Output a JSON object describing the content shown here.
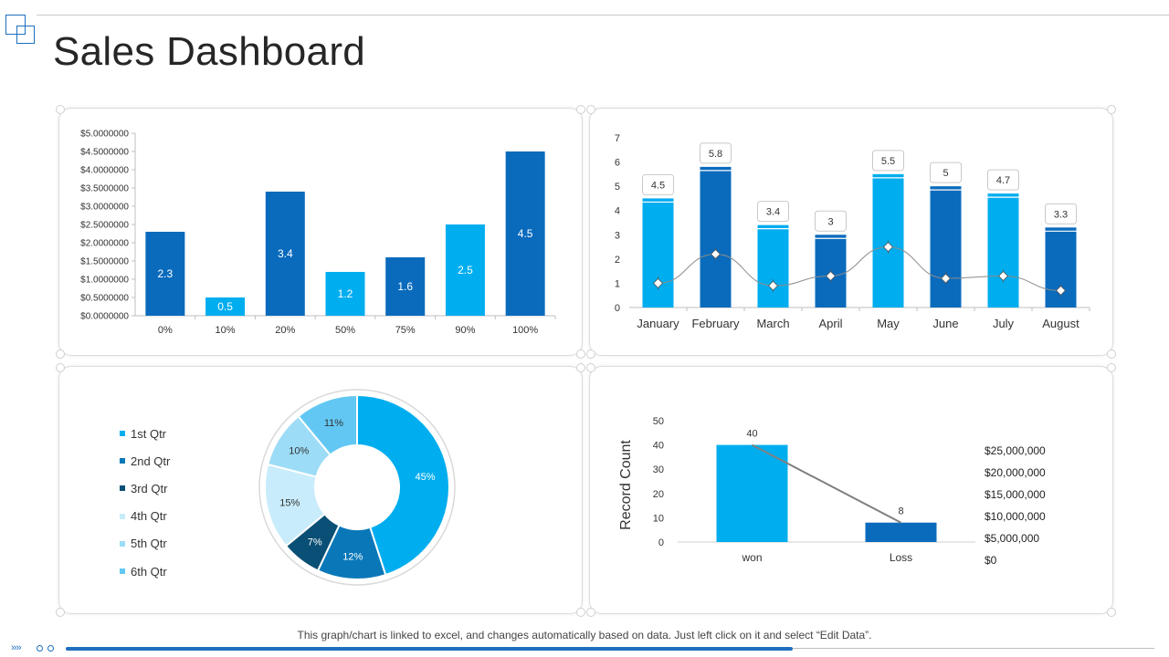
{
  "page": {
    "title": "Sales Dashboard"
  },
  "footer": {
    "note": "This graph/chart is linked to excel, and changes automatically based on data. Just left click on it and select “Edit Data”."
  },
  "colors": {
    "dark_blue": "#0a6bbd",
    "light_blue": "#00adef",
    "line_gray": "#8c8c8c"
  },
  "chart_data": [
    {
      "id": "chart1",
      "type": "bar",
      "categories": [
        "0%",
        "10%",
        "20%",
        "50%",
        "75%",
        "90%",
        "100%"
      ],
      "values": [
        2.3,
        0.5,
        3.4,
        1.2,
        1.6,
        2.5,
        4.5
      ],
      "data_labels": [
        "2.3",
        "0.5",
        "3.4",
        "1.2",
        "1.6",
        "2.5",
        "4.5"
      ],
      "bar_colors": [
        "#0a6bbd",
        "#00adef",
        "#0a6bbd",
        "#00adef",
        "#0a6bbd",
        "#00adef",
        "#0a6bbd"
      ],
      "ylim": [
        0,
        5
      ],
      "yticks": [
        0,
        0.5,
        1,
        1.5,
        2,
        2.5,
        3,
        3.5,
        4,
        4.5,
        5
      ],
      "ytick_labels": [
        "$0.0000000",
        "$0.5000000",
        "$1.0000000",
        "$1.5000000",
        "$2.0000000",
        "$2.5000000",
        "$3.0000000",
        "$3.5000000",
        "$4.0000000",
        "$4.5000000",
        "$5.0000000"
      ]
    },
    {
      "id": "chart2",
      "type": "bar",
      "categories": [
        "January",
        "February",
        "March",
        "April",
        "May",
        "June",
        "July",
        "August"
      ],
      "series": [
        {
          "name": "bars",
          "values": [
            4.5,
            5.8,
            3.4,
            3,
            5.5,
            5,
            4.7,
            3.3
          ]
        },
        {
          "name": "line",
          "type": "line",
          "values": [
            1.0,
            2.2,
            0.9,
            1.3,
            2.5,
            1.2,
            1.3,
            0.7
          ]
        }
      ],
      "data_labels": [
        "4.5",
        "5.8",
        "3.4",
        "3",
        "5.5",
        "5",
        "4.7",
        "3.3"
      ],
      "bar_colors": [
        "#00adef",
        "#0a6bbd",
        "#00adef",
        "#0a6bbd",
        "#00adef",
        "#0a6bbd",
        "#00adef",
        "#0a6bbd"
      ],
      "ylim": [
        0,
        7
      ],
      "yticks": [
        0,
        1,
        2,
        3,
        4,
        5,
        6,
        7
      ],
      "ytick_labels": [
        "0",
        "1",
        "2",
        "3",
        "4",
        "5",
        "6",
        "7"
      ]
    },
    {
      "id": "chart3",
      "type": "pie",
      "labels": [
        "1st Qtr",
        "2nd Qtr",
        "3rd Qtr",
        "4th Qtr",
        "5th Qtr",
        "6th Qtr"
      ],
      "values": [
        45,
        12,
        7,
        15,
        10,
        11
      ],
      "value_labels": [
        "45%",
        "12%",
        "7%",
        "15%",
        "10%",
        "11%"
      ],
      "colors": [
        "#00adef",
        "#0a78b8",
        "#0a4f75",
        "#c8ecfb",
        "#9cdcf7",
        "#62c8f3"
      ],
      "legend_position": "left"
    },
    {
      "id": "chart4",
      "type": "bar",
      "categories": [
        "won",
        "Loss"
      ],
      "values": [
        40,
        8
      ],
      "data_labels": [
        "40",
        "8"
      ],
      "bar_colors": [
        "#00adef",
        "#0a6bbd"
      ],
      "ylabel": "Record Count",
      "ylim": [
        0,
        50
      ],
      "yticks": [
        0,
        10,
        20,
        30,
        40,
        50
      ],
      "ytick_labels": [
        "0",
        "10",
        "20",
        "30",
        "40",
        "50"
      ],
      "secondary_axis_labels": [
        "$25,000,000",
        "$20,000,000",
        "$15,000,000",
        "$10,000,000",
        "$5,000,000",
        "$0"
      ]
    }
  ]
}
